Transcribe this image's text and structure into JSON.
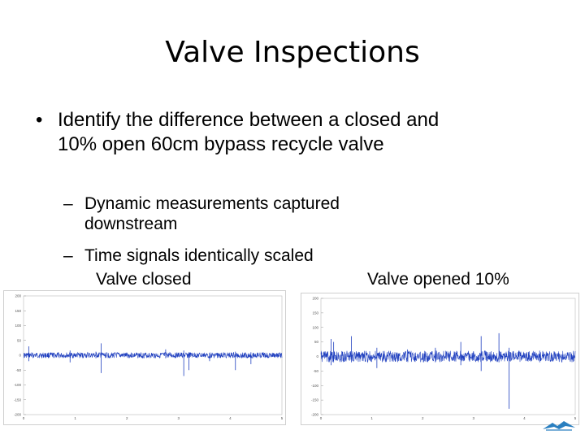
{
  "slide": {
    "title": "Valve Inspections",
    "bullet_char": "•",
    "bullet_text": "Identify the difference between a closed and 10% open 60cm bypass recycle valve",
    "sub_dash": "–",
    "sub_items": [
      "Dynamic measurements captured downstream",
      "Time signals identically scaled"
    ],
    "caption_left": "Valve closed",
    "caption_right": "Valve opened 10%"
  },
  "plots": {
    "y_ticks": [
      "200",
      "150",
      "100",
      "50",
      "0",
      "-50",
      "-100",
      "-150",
      "-200"
    ],
    "line_color": "#1f3fbf",
    "left_x_ticks": [
      "0",
      "1",
      "2",
      "3",
      "4",
      "5"
    ],
    "right_x_ticks": [
      "0",
      "1",
      "2",
      "3",
      "4",
      "5"
    ]
  },
  "logo": {
    "icon": "winged-logo-icon",
    "color": "#2a7fc0"
  }
}
